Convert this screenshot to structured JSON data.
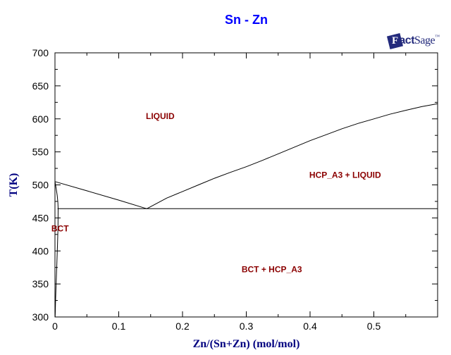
{
  "page": {
    "title": "Sn - Zn"
  },
  "logo": {
    "f": "F",
    "act": "act",
    "sage": "Sage",
    "tm": "™",
    "color": "#232a7c"
  },
  "colors": {
    "title": "#0000ff",
    "axis_label": "#000080",
    "phase_label": "#8b0000",
    "line": "#000000",
    "tick_label": "#000000"
  },
  "chart_data": {
    "type": "line",
    "title": "Sn - Zn",
    "xlabel": "Zn/(Sn+Zn) (mol/mol)",
    "ylabel": "T(K)",
    "xlim": [
      0,
      0.6
    ],
    "ylim": [
      300,
      700
    ],
    "grid": false,
    "legend": "none",
    "x_minor_step": 0.05,
    "x_major_step": 0.1,
    "y_minor_step": 25,
    "y_major_step": 50,
    "x_tick_labels": [
      {
        "value": 0.0,
        "label": "0"
      },
      {
        "value": 0.1,
        "label": "0.1"
      },
      {
        "value": 0.2,
        "label": "0.2"
      },
      {
        "value": 0.3,
        "label": "0.3"
      },
      {
        "value": 0.4,
        "label": "0.4"
      },
      {
        "value": 0.5,
        "label": "0.5"
      }
    ],
    "y_tick_labels": [
      {
        "value": 300,
        "label": "300"
      },
      {
        "value": 350,
        "label": "350"
      },
      {
        "value": 400,
        "label": "400"
      },
      {
        "value": 450,
        "label": "450"
      },
      {
        "value": 500,
        "label": "500"
      },
      {
        "value": 550,
        "label": "550"
      },
      {
        "value": 600,
        "label": "600"
      },
      {
        "value": 650,
        "label": "650"
      },
      {
        "value": 700,
        "label": "700"
      }
    ],
    "eutectic_point": {
      "x": 0.144,
      "T": 464
    },
    "sn_melting_point": {
      "x": 0.0,
      "T": 505
    },
    "series": [
      {
        "name": "liquidus-left",
        "points": [
          [
            0.0,
            505
          ],
          [
            0.05,
            491
          ],
          [
            0.1,
            477
          ],
          [
            0.144,
            464
          ]
        ]
      },
      {
        "name": "liquidus-right",
        "points": [
          [
            0.144,
            464
          ],
          [
            0.175,
            480
          ],
          [
            0.2,
            490
          ],
          [
            0.225,
            500
          ],
          [
            0.25,
            510
          ],
          [
            0.275,
            519
          ],
          [
            0.3,
            527.5
          ],
          [
            0.325,
            537
          ],
          [
            0.35,
            547
          ],
          [
            0.375,
            557
          ],
          [
            0.4,
            567
          ],
          [
            0.425,
            576
          ],
          [
            0.45,
            585
          ],
          [
            0.475,
            593
          ],
          [
            0.5,
            600
          ],
          [
            0.525,
            607
          ],
          [
            0.55,
            613
          ],
          [
            0.575,
            618.5
          ],
          [
            0.6,
            623
          ]
        ]
      },
      {
        "name": "eutectic-isotherm",
        "points": [
          [
            0.004,
            464
          ],
          [
            0.6,
            464
          ]
        ]
      },
      {
        "name": "bct-solidus",
        "points": [
          [
            0.0,
            505
          ],
          [
            0.002,
            494
          ],
          [
            0.0035,
            484
          ],
          [
            0.0045,
            474
          ],
          [
            0.005,
            464
          ]
        ]
      },
      {
        "name": "bct-solvus",
        "points": [
          [
            0.005,
            464
          ],
          [
            0.0047,
            435
          ],
          [
            0.004,
            410
          ],
          [
            0.003,
            381
          ],
          [
            0.002,
            355
          ],
          [
            0.001,
            327
          ],
          [
            0.0004,
            305
          ],
          [
            0.0002,
            300
          ]
        ]
      }
    ],
    "annotations": [
      {
        "label": "LIQUID",
        "x": 0.165,
        "T": 604
      },
      {
        "label": "HCP_A3 + LIQUID",
        "x": 0.455,
        "T": 515
      },
      {
        "label": "BCT",
        "x": 0.008,
        "T": 434
      },
      {
        "label": "BCT + HCP_A3",
        "x": 0.34,
        "T": 372
      }
    ]
  }
}
